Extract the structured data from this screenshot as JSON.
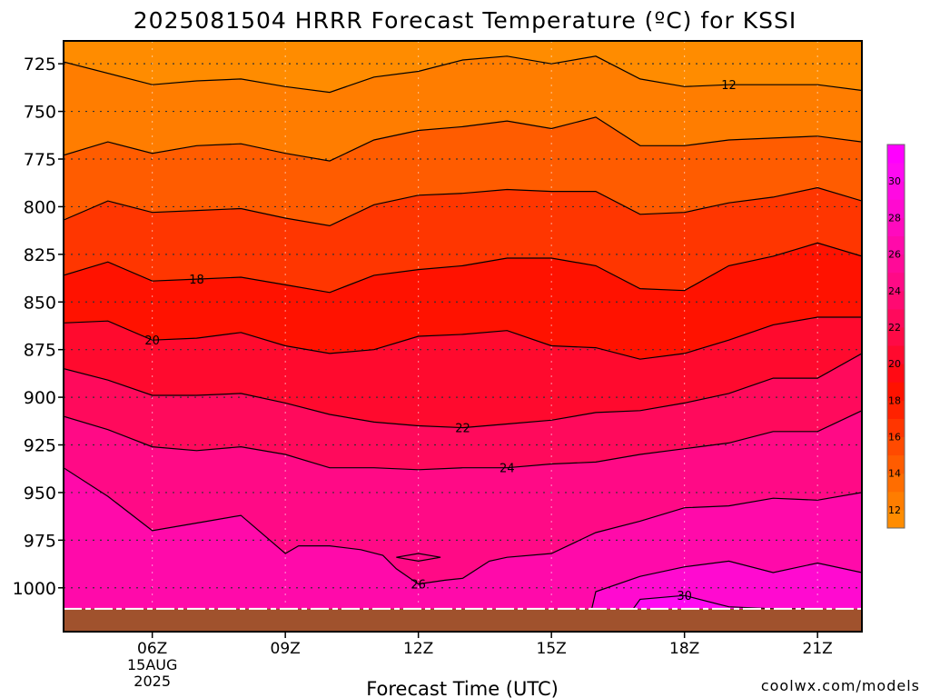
{
  "chart_data": {
    "type": "contour",
    "title": "2025081504 HRRR Forecast Temperature (ºC) for KSSI",
    "xlabel": "Forecast Time (UTC)",
    "ylabel": "",
    "x_ticks": [
      {
        "hour": 6,
        "label": "06Z",
        "sub": [
          "15AUG",
          "2025"
        ]
      },
      {
        "hour": 9,
        "label": "09Z"
      },
      {
        "hour": 12,
        "label": "12Z"
      },
      {
        "hour": 15,
        "label": "15Z"
      },
      {
        "hour": 18,
        "label": "18Z"
      },
      {
        "hour": 21,
        "label": "21Z"
      }
    ],
    "xlim_hours": [
      4,
      22
    ],
    "y_ticks": [
      725,
      750,
      775,
      800,
      825,
      850,
      875,
      900,
      925,
      950,
      975,
      1000
    ],
    "ylim_hpa": [
      713,
      1023
    ],
    "y_scale": "pressure (inverted)",
    "grid": true,
    "colorbar": {
      "levels": [
        11,
        12,
        13,
        14,
        15,
        16,
        17,
        18,
        19,
        20,
        21,
        22,
        23,
        24,
        25,
        26,
        27,
        28,
        29,
        30,
        31,
        32
      ],
      "labels": [
        12,
        14,
        16,
        18,
        20,
        22,
        24,
        26,
        28,
        30
      ],
      "colors": [
        "#ff8c00",
        "#ff7d00",
        "#ff6d00",
        "#ff5c00",
        "#ff4a00",
        "#ff3600",
        "#ff2200",
        "#ff1200",
        "#ff0a14",
        "#ff0a2e",
        "#ff0a46",
        "#ff0a5c",
        "#ff0a72",
        "#ff0a86",
        "#ff0a98",
        "#ff0aaa",
        "#ff0abe",
        "#ff0ad0",
        "#ff0ae2",
        "#ff0af2",
        "#ff00ff"
      ]
    },
    "contours": [
      {
        "level": 12,
        "label": "12",
        "label_at": 19.0,
        "points": [
          [
            4,
            724
          ],
          [
            6,
            736
          ],
          [
            7,
            734
          ],
          [
            8,
            733
          ],
          [
            9,
            737
          ],
          [
            10,
            740
          ],
          [
            11,
            732
          ],
          [
            12,
            729
          ],
          [
            13,
            723
          ],
          [
            14,
            721
          ],
          [
            15,
            725
          ],
          [
            16,
            721
          ],
          [
            17,
            733
          ],
          [
            18,
            737
          ],
          [
            19,
            736
          ],
          [
            20,
            736
          ],
          [
            21,
            736
          ],
          [
            22,
            739
          ]
        ]
      },
      {
        "level": 14,
        "label": "",
        "points": [
          [
            4,
            773
          ],
          [
            5,
            766
          ],
          [
            6,
            772
          ],
          [
            7,
            768
          ],
          [
            8,
            767
          ],
          [
            9,
            772
          ],
          [
            10,
            776
          ],
          [
            11,
            765
          ],
          [
            12,
            760
          ],
          [
            13,
            758
          ],
          [
            14,
            755
          ],
          [
            15,
            759
          ],
          [
            16,
            753
          ],
          [
            17,
            768
          ],
          [
            18,
            768
          ],
          [
            19,
            765
          ],
          [
            20,
            764
          ],
          [
            21,
            763
          ],
          [
            22,
            766
          ]
        ]
      },
      {
        "level": 16,
        "label": "",
        "points": [
          [
            4,
            807
          ],
          [
            5,
            797
          ],
          [
            6,
            803
          ],
          [
            7,
            802
          ],
          [
            8,
            801
          ],
          [
            9,
            806
          ],
          [
            10,
            810
          ],
          [
            11,
            799
          ],
          [
            12,
            794
          ],
          [
            13,
            793
          ],
          [
            14,
            791
          ],
          [
            15,
            792
          ],
          [
            16,
            792
          ],
          [
            17,
            804
          ],
          [
            18,
            803
          ],
          [
            19,
            798
          ],
          [
            20,
            795
          ],
          [
            21,
            790
          ],
          [
            22,
            797
          ]
        ]
      },
      {
        "level": 18,
        "label": "18",
        "label_at": 7.0,
        "points": [
          [
            4,
            836
          ],
          [
            5,
            829
          ],
          [
            6,
            839
          ],
          [
            7,
            838
          ],
          [
            8,
            837
          ],
          [
            9,
            841
          ],
          [
            10,
            845
          ],
          [
            11,
            836
          ],
          [
            12,
            833
          ],
          [
            13,
            831
          ],
          [
            14,
            827
          ],
          [
            15,
            827
          ],
          [
            16,
            831
          ],
          [
            17,
            843
          ],
          [
            18,
            844
          ],
          [
            19,
            831
          ],
          [
            20,
            826
          ],
          [
            21,
            819
          ],
          [
            22,
            826
          ]
        ]
      },
      {
        "level": 20,
        "label": "20",
        "label_at": 6.0,
        "points": [
          [
            4,
            861
          ],
          [
            5,
            860
          ],
          [
            6,
            870
          ],
          [
            7,
            869
          ],
          [
            8,
            866
          ],
          [
            9,
            873
          ],
          [
            10,
            877
          ],
          [
            11,
            875
          ],
          [
            12,
            868
          ],
          [
            13,
            867
          ],
          [
            14,
            865
          ],
          [
            15,
            873
          ],
          [
            16,
            874
          ],
          [
            17,
            880
          ],
          [
            18,
            877
          ],
          [
            19,
            870
          ],
          [
            20,
            862
          ],
          [
            21,
            858
          ],
          [
            22,
            858
          ]
        ]
      },
      {
        "level": 22,
        "label": "22",
        "label_at": 13.0,
        "points": [
          [
            4,
            885
          ],
          [
            5,
            891
          ],
          [
            6,
            899
          ],
          [
            7,
            899
          ],
          [
            8,
            898
          ],
          [
            9,
            903
          ],
          [
            10,
            909
          ],
          [
            11,
            913
          ],
          [
            12,
            915
          ],
          [
            13,
            916
          ],
          [
            14,
            914
          ],
          [
            15,
            912
          ],
          [
            16,
            908
          ],
          [
            17,
            907
          ],
          [
            18,
            903
          ],
          [
            19,
            898
          ],
          [
            20,
            890
          ],
          [
            21,
            890
          ],
          [
            22,
            877
          ]
        ]
      },
      {
        "level": 24,
        "label": "24",
        "label_at": 14.0,
        "points": [
          [
            4,
            910
          ],
          [
            5,
            917
          ],
          [
            6,
            926
          ],
          [
            7,
            928
          ],
          [
            8,
            926
          ],
          [
            9,
            930
          ],
          [
            10,
            937
          ],
          [
            11,
            937
          ],
          [
            12,
            938
          ],
          [
            13,
            937
          ],
          [
            14,
            937
          ],
          [
            15,
            935
          ],
          [
            16,
            934
          ],
          [
            17,
            930
          ],
          [
            18,
            927
          ],
          [
            19,
            924
          ],
          [
            20,
            918
          ],
          [
            21,
            918
          ],
          [
            22,
            907
          ]
        ]
      },
      {
        "level": 26,
        "label": "26",
        "label_at": 12.0,
        "points": [
          [
            4,
            937
          ],
          [
            5,
            952
          ],
          [
            6,
            970
          ],
          [
            7,
            966
          ],
          [
            8,
            962
          ],
          [
            9,
            982
          ],
          [
            9.3,
            978
          ],
          [
            10,
            978
          ],
          [
            10.7,
            980
          ],
          [
            11.2,
            983
          ],
          [
            11.5,
            990
          ],
          [
            12,
            998
          ],
          [
            12.6,
            996
          ],
          [
            13,
            995
          ],
          [
            13.6,
            986
          ],
          [
            14,
            984
          ],
          [
            15,
            982
          ],
          [
            16,
            971
          ],
          [
            17,
            965
          ],
          [
            18,
            958
          ],
          [
            19,
            957
          ],
          [
            20,
            953
          ],
          [
            21,
            954
          ],
          [
            22,
            950
          ]
        ]
      },
      {
        "level": 28,
        "label": "",
        "points": [
          [
            15.8,
            1022
          ],
          [
            16,
            1002
          ],
          [
            17,
            994
          ],
          [
            18,
            989
          ],
          [
            19,
            986
          ],
          [
            20,
            992
          ],
          [
            21,
            987
          ],
          [
            22,
            992
          ]
        ]
      },
      {
        "level": 30,
        "label": "30",
        "label_at": 18.0,
        "points": [
          [
            16.5,
            1022
          ],
          [
            17,
            1006
          ],
          [
            18,
            1004
          ],
          [
            19,
            1010
          ],
          [
            20,
            1011
          ],
          [
            21,
            1011
          ],
          [
            22,
            1013
          ]
        ]
      },
      {
        "level": 26,
        "label": "",
        "points": [
          [
            11.5,
            984
          ],
          [
            12,
            982
          ],
          [
            12.5,
            984
          ],
          [
            12,
            986
          ],
          [
            11.5,
            984
          ]
        ]
      }
    ],
    "surface_pressure_hpa": 1011
  },
  "footer": {
    "credit": "coolwx.com/models"
  },
  "colors": {
    "ground": "#a0522d",
    "credit": "#cc2222",
    "grid": "#555555"
  }
}
